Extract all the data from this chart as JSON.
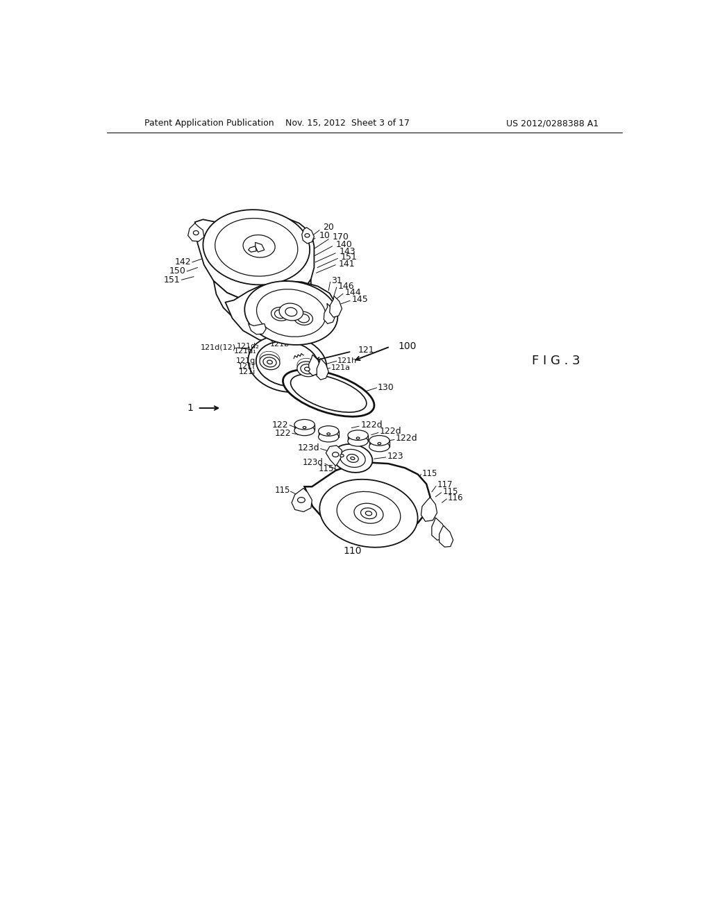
{
  "bg_color": "#ffffff",
  "lc": "#111111",
  "header_left": "Patent Application Publication",
  "header_center": "Nov. 15, 2012  Sheet 3 of 17",
  "header_right": "US 2012/0288388 A1",
  "fig_label": "F I G . 3"
}
